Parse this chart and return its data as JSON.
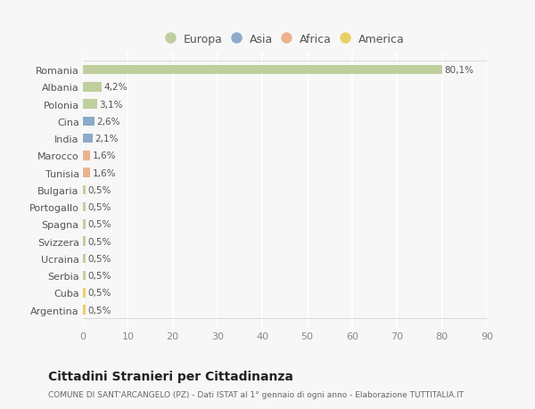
{
  "countries": [
    "Romania",
    "Albania",
    "Polonia",
    "Cina",
    "India",
    "Marocco",
    "Tunisia",
    "Bulgaria",
    "Portogallo",
    "Spagna",
    "Svizzera",
    "Ucraina",
    "Serbia",
    "Cuba",
    "Argentina"
  ],
  "values": [
    80.1,
    4.2,
    3.1,
    2.6,
    2.1,
    1.6,
    1.6,
    0.5,
    0.5,
    0.5,
    0.5,
    0.5,
    0.5,
    0.5,
    0.5
  ],
  "labels": [
    "80,1%",
    "4,2%",
    "3,1%",
    "2,6%",
    "2,1%",
    "1,6%",
    "1,6%",
    "0,5%",
    "0,5%",
    "0,5%",
    "0,5%",
    "0,5%",
    "0,5%",
    "0,5%",
    "0,5%"
  ],
  "colors": [
    "#b5c98e",
    "#b5c98e",
    "#b5c98e",
    "#7b9dc4",
    "#7b9dc4",
    "#e8a87c",
    "#e8a87c",
    "#b5c98e",
    "#b5c98e",
    "#b5c98e",
    "#b5c98e",
    "#b5c98e",
    "#b5c98e",
    "#e8c94e",
    "#e8c94e"
  ],
  "legend_labels": [
    "Europa",
    "Asia",
    "Africa",
    "America"
  ],
  "legend_colors": [
    "#b5c98e",
    "#7b9dc4",
    "#e8a87c",
    "#e8c94e"
  ],
  "title": "Cittadini Stranieri per Cittadinanza",
  "subtitle": "COMUNE DI SANT'ARCANGELO (PZ) - Dati ISTAT al 1° gennaio di ogni anno - Elaborazione TUTTITALIA.IT",
  "xlim": [
    0,
    90
  ],
  "xticks": [
    0,
    10,
    20,
    30,
    40,
    50,
    60,
    70,
    80,
    90
  ],
  "bg_color": "#f7f7f7",
  "grid_color": "#ffffff",
  "bar_height": 0.55
}
